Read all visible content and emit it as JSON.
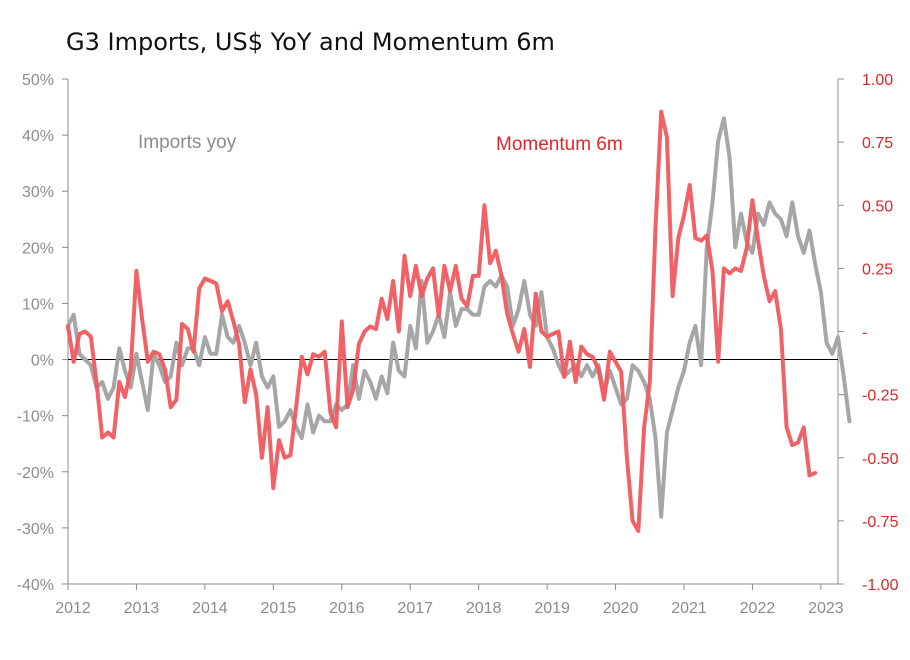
{
  "chart_data": {
    "type": "line",
    "title": "G3 Imports, US$ YoY and Momentum 6m",
    "x_tick_labels": [
      "2012",
      "2013",
      "2014",
      "2015",
      "2016",
      "2017",
      "2018",
      "2019",
      "2020",
      "2021",
      "2022",
      "2023"
    ],
    "x_range": [
      2012.0,
      2023.25
    ],
    "y_left": {
      "range": [
        -40,
        50
      ],
      "tick_values": [
        -40,
        -30,
        -20,
        -10,
        0,
        10,
        20,
        30,
        40,
        50
      ],
      "tick_labels": [
        "-40%",
        "-30%",
        "-20%",
        "-10%",
        "0%",
        "10%",
        "20%",
        "30%",
        "40%",
        "50%"
      ]
    },
    "y_right": {
      "range": [
        -1.0,
        1.0
      ],
      "tick_values": [
        -1.0,
        -0.75,
        -0.5,
        -0.25,
        0,
        0.25,
        0.5,
        0.75,
        1.0
      ],
      "tick_labels": [
        "-1.00",
        "-0.75",
        "-0.50",
        "-0.25",
        "-",
        "0.25",
        "0.50",
        "0.75",
        "1.00"
      ]
    },
    "series": [
      {
        "name": "Imports yoy",
        "axis": "left",
        "color": "#a6a6a6",
        "start": 2012.0,
        "step": 0.08333,
        "values": [
          6,
          8,
          1,
          0,
          -1,
          -5,
          -4,
          -7,
          -5,
          2,
          -2,
          -5,
          1,
          -4,
          -9,
          1,
          -1,
          -4,
          -3,
          3,
          -1,
          2,
          2,
          -1,
          4,
          1,
          1,
          8,
          4,
          3,
          6,
          3,
          -1,
          3,
          -3,
          -5,
          -3,
          -12,
          -11,
          -9,
          -12,
          -14,
          -8,
          -13,
          -10,
          -11,
          -11,
          -8,
          -9,
          -8,
          -1,
          -7,
          -2,
          -4,
          -7,
          -3,
          -6,
          3,
          -2,
          -3,
          6,
          2,
          14,
          3,
          5,
          8,
          4,
          12,
          6,
          9,
          9,
          8,
          8,
          13,
          14,
          13,
          15,
          13,
          6,
          9,
          14,
          8,
          6,
          12,
          4,
          2,
          -1,
          -3,
          -2,
          -1,
          -3,
          -1,
          -3,
          -1,
          -6,
          -2,
          -5,
          -8,
          -7,
          -1,
          -2,
          -4,
          -7,
          -14,
          -28,
          -13,
          -9,
          -5,
          -2,
          3,
          6,
          -1,
          20,
          28,
          39,
          43,
          36,
          20,
          26,
          21,
          19,
          26,
          24,
          28,
          26,
          25,
          22,
          28,
          22,
          19,
          23,
          17,
          12,
          3,
          1,
          4,
          -3,
          -11
        ]
      },
      {
        "name": "Momentum 6m",
        "axis": "right",
        "color": "#f05a5e",
        "start": 2012.0,
        "step": 0.08333,
        "values": [
          0.02,
          -0.12,
          -0.01,
          0.0,
          -0.02,
          -0.2,
          -0.42,
          -0.4,
          -0.42,
          -0.2,
          -0.26,
          -0.15,
          0.24,
          0.05,
          -0.12,
          -0.08,
          -0.09,
          -0.15,
          -0.3,
          -0.27,
          0.03,
          0.01,
          -0.08,
          0.17,
          0.21,
          0.2,
          0.19,
          0.08,
          0.12,
          0.04,
          -0.05,
          -0.28,
          -0.15,
          -0.25,
          -0.5,
          -0.3,
          -0.62,
          -0.43,
          -0.5,
          -0.49,
          -0.3,
          -0.1,
          -0.17,
          -0.09,
          -0.1,
          -0.08,
          -0.32,
          -0.38,
          0.04,
          -0.3,
          -0.23,
          -0.05,
          0.0,
          0.02,
          0.01,
          0.13,
          0.05,
          0.2,
          0.0,
          0.3,
          0.14,
          0.26,
          0.14,
          0.21,
          0.25,
          0.06,
          0.26,
          0.16,
          0.26,
          0.13,
          0.1,
          0.22,
          0.22,
          0.5,
          0.27,
          0.32,
          0.22,
          0.07,
          -0.01,
          -0.08,
          0.01,
          -0.14,
          0.15,
          0.0,
          -0.02,
          -0.01,
          0.0,
          -0.18,
          -0.04,
          -0.2,
          -0.06,
          -0.09,
          -0.1,
          -0.15,
          -0.27,
          -0.08,
          -0.12,
          -0.16,
          -0.5,
          -0.75,
          -0.79,
          -0.38,
          -0.2,
          0.41,
          0.87,
          0.77,
          0.14,
          0.37,
          0.46,
          0.58,
          0.37,
          0.36,
          0.38,
          0.24,
          -0.12,
          0.25,
          0.23,
          0.25,
          0.24,
          0.33,
          0.52,
          0.36,
          0.22,
          0.12,
          0.16,
          0.01,
          -0.38,
          -0.45,
          -0.44,
          -0.38,
          -0.57,
          -0.56
        ]
      }
    ],
    "annotations": [
      {
        "text": "Imports yoy",
        "series": 0
      },
      {
        "text": "Momentum 6m",
        "series": 1
      }
    ],
    "zero_line": true,
    "grid": false
  }
}
